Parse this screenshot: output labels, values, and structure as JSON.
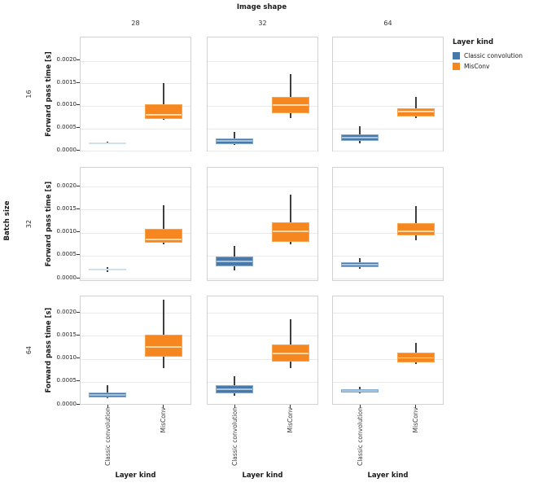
{
  "figure": {
    "title": "Image shape",
    "col_facet_labels": [
      "28",
      "32",
      "64"
    ],
    "row_facet_title": "Batch size",
    "row_facet_labels": [
      "16",
      "32",
      "64"
    ],
    "x_axis_title": "Layer kind",
    "y_axis_title": "Forward pass time [s]",
    "y_tick_labels": [
      "0.0000",
      "0.0005",
      "0.0010",
      "0.0015",
      "0.0020"
    ],
    "x_category_labels": [
      "Classic convolution",
      "MisConv"
    ]
  },
  "legend": {
    "title": "Layer kind",
    "items": [
      {
        "label": "Classic convolution",
        "color": "#4a79a9",
        "edge_color": "#85abce",
        "median_color": "#a7c4dd",
        "pale_color": "#cfe0ee"
      },
      {
        "label": "MisConv",
        "color": "#f6861f",
        "edge_color": "#f9a54e",
        "median_color": "#fdd9a7",
        "pale_color": "#fde3c3"
      }
    ]
  },
  "chart_data": {
    "type": "box",
    "title": "Image shape",
    "xlabel": "Layer kind",
    "ylabel": "Forward pass time [s]",
    "x_categories": [
      "Classic convolution",
      "MisConv"
    ],
    "y_ticks": [
      0,
      0.0005,
      0.001,
      0.0015,
      0.002
    ],
    "ylim": [
      -5e-05,
      0.0025
    ],
    "grid": true,
    "legend_position": "top-right",
    "col_facet": {
      "title": "Image shape",
      "values": [
        "28",
        "32",
        "64"
      ]
    },
    "row_facet": {
      "title": "Batch size",
      "values": [
        "16",
        "32",
        "64"
      ]
    },
    "facets": [
      {
        "row": "16",
        "col": "28",
        "boxes": [
          {
            "series": "Classic convolution",
            "whislo": 0.00013,
            "q1": 0.00014,
            "med": 0.00015,
            "q3": 0.00016,
            "whishi": 0.00018
          },
          {
            "series": "MisConv",
            "whislo": 0.00067,
            "q1": 0.0007,
            "med": 0.00078,
            "q3": 0.00102,
            "whishi": 0.00149
          }
        ]
      },
      {
        "row": "16",
        "col": "32",
        "boxes": [
          {
            "series": "Classic convolution",
            "whislo": 0.00011,
            "q1": 0.00013,
            "med": 0.0002,
            "q3": 0.00026,
            "whishi": 0.0004
          },
          {
            "series": "MisConv",
            "whislo": 0.00071,
            "q1": 0.00082,
            "med": 0.001,
            "q3": 0.00118,
            "whishi": 0.00169
          }
        ]
      },
      {
        "row": "16",
        "col": "64",
        "boxes": [
          {
            "series": "Classic convolution",
            "whislo": 0.00015,
            "q1": 0.0002,
            "med": 0.00028,
            "q3": 0.00035,
            "whishi": 0.00053
          },
          {
            "series": "MisConv",
            "whislo": 0.00071,
            "q1": 0.00075,
            "med": 0.00085,
            "q3": 0.00093,
            "whishi": 0.00118
          }
        ]
      },
      {
        "row": "32",
        "col": "28",
        "boxes": [
          {
            "series": "Classic convolution",
            "whislo": 0.00013,
            "q1": 0.00015,
            "med": 0.00017,
            "q3": 0.00019,
            "whishi": 0.00023
          },
          {
            "series": "MisConv",
            "whislo": 0.00073,
            "q1": 0.00076,
            "med": 0.00083,
            "q3": 0.00106,
            "whishi": 0.00158
          }
        ]
      },
      {
        "row": "32",
        "col": "32",
        "boxes": [
          {
            "series": "Classic convolution",
            "whislo": 0.00016,
            "q1": 0.00025,
            "med": 0.00035,
            "q3": 0.00046,
            "whishi": 0.00069
          },
          {
            "series": "MisConv",
            "whislo": 0.00073,
            "q1": 0.00078,
            "med": 0.00101,
            "q3": 0.0012,
            "whishi": 0.00181
          }
        ]
      },
      {
        "row": "32",
        "col": "64",
        "boxes": [
          {
            "series": "Classic convolution",
            "whislo": 0.0002,
            "q1": 0.00023,
            "med": 0.00028,
            "q3": 0.00034,
            "whishi": 0.00042
          },
          {
            "series": "MisConv",
            "whislo": 0.00081,
            "q1": 0.00092,
            "med": 0.00101,
            "q3": 0.00119,
            "whishi": 0.00155
          }
        ]
      },
      {
        "row": "64",
        "col": "28",
        "boxes": [
          {
            "series": "Classic convolution",
            "whislo": 0.00013,
            "q1": 0.00014,
            "med": 0.0002,
            "q3": 0.00025,
            "whishi": 0.0004
          },
          {
            "series": "MisConv",
            "whislo": 0.00078,
            "q1": 0.00103,
            "med": 0.00124,
            "q3": 0.0015,
            "whishi": 0.00227
          }
        ]
      },
      {
        "row": "64",
        "col": "32",
        "boxes": [
          {
            "series": "Classic convolution",
            "whislo": 0.00018,
            "q1": 0.00023,
            "med": 0.00032,
            "q3": 0.00041,
            "whishi": 0.0006
          },
          {
            "series": "MisConv",
            "whislo": 0.00078,
            "q1": 0.00092,
            "med": 0.0011,
            "q3": 0.00129,
            "whishi": 0.00184
          }
        ]
      },
      {
        "row": "64",
        "col": "64",
        "boxes": [
          {
            "series": "Classic convolution",
            "whislo": 0.00023,
            "q1": 0.00025,
            "med": 0.00028,
            "q3": 0.00032,
            "whishi": 0.00037
          },
          {
            "series": "MisConv",
            "whislo": 0.00087,
            "q1": 0.0009,
            "med": 0.001,
            "q3": 0.00112,
            "whishi": 0.00133
          }
        ]
      }
    ]
  }
}
